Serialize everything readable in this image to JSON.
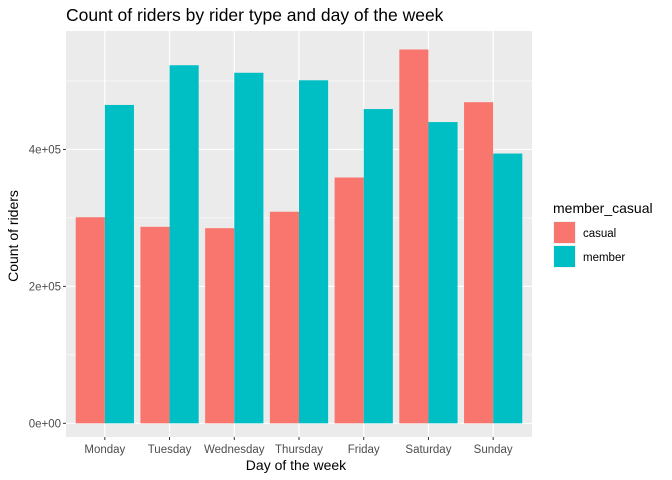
{
  "chart_data": {
    "type": "bar",
    "title": "Count of riders by rider type and day of the week",
    "xlabel": "Day of the week",
    "ylabel": "Count of riders",
    "categories": [
      "Monday",
      "Tuesday",
      "Wednesday",
      "Thursday",
      "Friday",
      "Saturday",
      "Sunday"
    ],
    "series": [
      {
        "name": "casual",
        "color": "#F8766D",
        "values": [
          301000,
          287000,
          285000,
          309000,
          359000,
          546000,
          469000
        ]
      },
      {
        "name": "member",
        "color": "#00BFC4",
        "values": [
          465000,
          523000,
          512000,
          501000,
          459000,
          440000,
          394000
        ]
      }
    ],
    "ylim": [
      -20000,
      573000
    ],
    "yticks": [
      {
        "value": 0,
        "label": "0e+00"
      },
      {
        "value": 200000,
        "label": "2e+05"
      },
      {
        "value": 400000,
        "label": "4e+05"
      }
    ],
    "legend": {
      "title": "member_casual",
      "position": "right"
    },
    "grid": true,
    "panel_background": "#EBEBEB"
  }
}
